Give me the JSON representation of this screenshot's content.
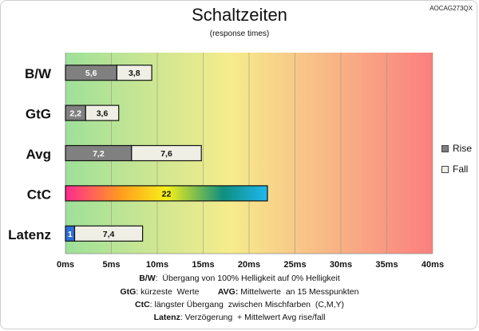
{
  "model": "AOCAG273QX",
  "title": "Schaltzeiten",
  "subtitle": "(response times)",
  "colors": {
    "rise": "#808080",
    "fall": "#f0efe6",
    "latency_first": "#2f6fd8",
    "bg_green": "#9ee09a",
    "bg_yellow": "#f6ec8c",
    "bg_red": "#fa7f7f"
  },
  "legend": [
    {
      "label": "Rise",
      "color": "#808080"
    },
    {
      "label": "Fall",
      "color": "#f0efe6"
    }
  ],
  "footnotes": [
    {
      "key": "B/W",
      "text": ":  Übergang von 100% Helligkeit auf 0% Helligkeit"
    },
    {
      "key": "GtG",
      "text": ": kürzeste  Werte        ",
      "key2": "AVG:",
      "text2": " Mittelwerte  an 15 Messpunkten"
    },
    {
      "key": "CtC",
      "text": ": längster Übergang  zwischen Mischfarben  (C,M,Y)"
    },
    {
      "key": "Latenz",
      "text": ": Verzögerung  + Mittelwert Avg rise/fall"
    }
  ],
  "chart_data": {
    "type": "bar",
    "orientation": "horizontal",
    "stacked": true,
    "categories": [
      "B/W",
      "GtG",
      "Avg",
      "CtC",
      "Latenz"
    ],
    "series": [
      {
        "name": "Rise",
        "values": [
          5.6,
          2.2,
          7.2,
          null,
          null
        ]
      },
      {
        "name": "Fall",
        "values": [
          3.8,
          3.6,
          7.6,
          null,
          7.4
        ]
      },
      {
        "name": "",
        "values": [
          null,
          null,
          null,
          22,
          1
        ]
      }
    ],
    "x_ticks": [
      "0ms",
      "5ms",
      "10ms",
      "15ms",
      "20ms",
      "25ms",
      "30ms",
      "35ms",
      "40ms"
    ],
    "xlim": [
      0,
      40
    ],
    "grid": true,
    "legend_position": "right"
  }
}
